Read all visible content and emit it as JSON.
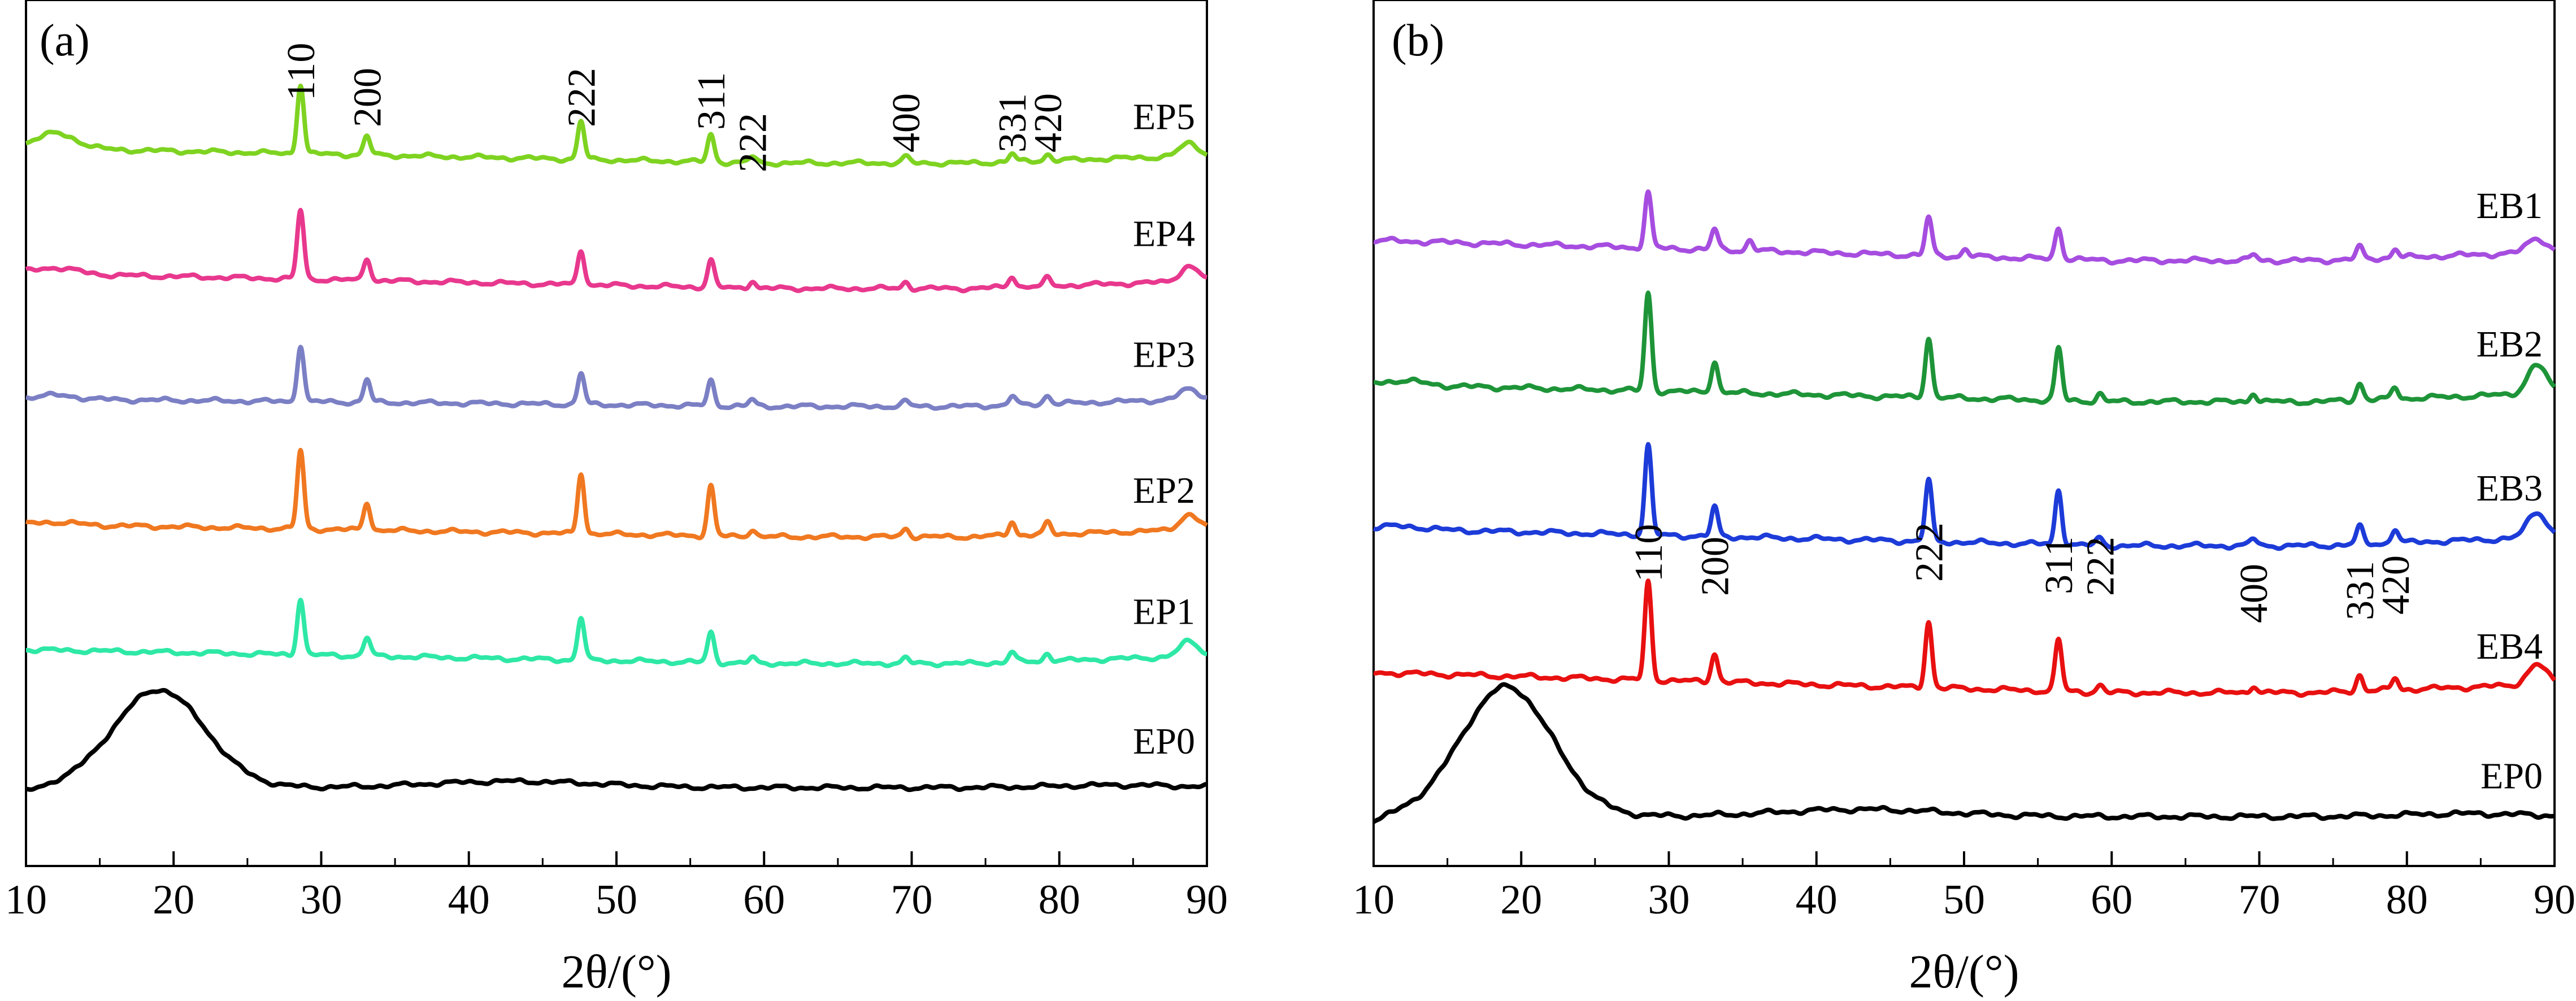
{
  "chart_data": [
    {
      "type": "line",
      "panel_label": "(a)",
      "xlabel": "2θ/(°)",
      "ylabel": "",
      "xlim": [
        10,
        90
      ],
      "x_ticks": [
        10,
        20,
        30,
        40,
        50,
        60,
        70,
        80,
        90
      ],
      "y_ticks": false,
      "grid": false,
      "peak_annotations": [
        {
          "label": "110",
          "x": 28.6
        },
        {
          "label": "200",
          "x": 33.1
        },
        {
          "label": "222",
          "x": 47.6
        },
        {
          "label": "311",
          "x": 56.4
        },
        {
          "label": "222",
          "x": 59.2
        },
        {
          "label": "400",
          "x": 69.6
        },
        {
          "label": "331",
          "x": 76.8
        },
        {
          "label": "420",
          "x": 79.2
        }
      ],
      "series": [
        {
          "name": "EP5",
          "color": "#7ed321",
          "baseline": 5.0,
          "baseline_drift": -0.12,
          "start_rise": 0.12,
          "peaks": [
            {
              "x": 28.6,
              "h": 0.55
            },
            {
              "x": 33.1,
              "h": 0.15
            },
            {
              "x": 47.6,
              "h": 0.3
            },
            {
              "x": 56.4,
              "h": 0.22
            },
            {
              "x": 59.2,
              "h": 0.05
            },
            {
              "x": 69.6,
              "h": 0.05
            },
            {
              "x": 76.8,
              "h": 0.06
            },
            {
              "x": 79.2,
              "h": 0.05
            },
            {
              "x": 88.8,
              "h": 0.1
            }
          ]
        },
        {
          "name": "EP4",
          "color": "#e8388e",
          "baseline": 4.0,
          "baseline_drift": -0.12,
          "start_rise": 0.05,
          "peaks": [
            {
              "x": 28.6,
              "h": 0.55
            },
            {
              "x": 33.1,
              "h": 0.18
            },
            {
              "x": 47.6,
              "h": 0.28
            },
            {
              "x": 56.4,
              "h": 0.22
            },
            {
              "x": 59.2,
              "h": 0.06
            },
            {
              "x": 69.6,
              "h": 0.05
            },
            {
              "x": 76.8,
              "h": 0.09
            },
            {
              "x": 79.2,
              "h": 0.06
            },
            {
              "x": 88.8,
              "h": 0.12
            }
          ]
        },
        {
          "name": "EP3",
          "color": "#7b7fc4",
          "baseline": 3.0,
          "baseline_drift": -0.06,
          "start_rise": 0.03,
          "peaks": [
            {
              "x": 28.6,
              "h": 0.45
            },
            {
              "x": 33.1,
              "h": 0.18
            },
            {
              "x": 47.6,
              "h": 0.25
            },
            {
              "x": 56.4,
              "h": 0.2
            },
            {
              "x": 59.2,
              "h": 0.05
            },
            {
              "x": 69.6,
              "h": 0.04
            },
            {
              "x": 76.8,
              "h": 0.07
            },
            {
              "x": 79.2,
              "h": 0.07
            },
            {
              "x": 88.8,
              "h": 0.08
            }
          ]
        },
        {
          "name": "EP2",
          "color": "#f07820",
          "baseline": 2.0,
          "baseline_drift": -0.1,
          "start_rise": 0.02,
          "peaks": [
            {
              "x": 28.6,
              "h": 0.62
            },
            {
              "x": 33.1,
              "h": 0.22
            },
            {
              "x": 47.6,
              "h": 0.48
            },
            {
              "x": 56.4,
              "h": 0.4
            },
            {
              "x": 59.2,
              "h": 0.06
            },
            {
              "x": 69.6,
              "h": 0.07
            },
            {
              "x": 76.8,
              "h": 0.11
            },
            {
              "x": 79.2,
              "h": 0.09
            },
            {
              "x": 88.8,
              "h": 0.12
            }
          ]
        },
        {
          "name": "EP1",
          "color": "#2ee8a6",
          "baseline": 1.0,
          "baseline_drift": -0.11,
          "start_rise": 0.0,
          "peaks": [
            {
              "x": 28.6,
              "h": 0.45
            },
            {
              "x": 33.1,
              "h": 0.15
            },
            {
              "x": 47.6,
              "h": 0.34
            },
            {
              "x": 56.4,
              "h": 0.24
            },
            {
              "x": 59.2,
              "h": 0.04
            },
            {
              "x": 69.6,
              "h": 0.04
            },
            {
              "x": 76.8,
              "h": 0.08
            },
            {
              "x": 79.2,
              "h": 0.06
            },
            {
              "x": 88.8,
              "h": 0.12
            }
          ]
        },
        {
          "name": "EP0",
          "color": "#000000",
          "amorphous": true,
          "baseline": -0.1,
          "hump_center": 19.0,
          "hump_height": 0.78,
          "hump_width": 4.4,
          "peaks": []
        }
      ]
    },
    {
      "type": "line",
      "panel_label": "(b)",
      "xlabel": "2θ/(°)",
      "ylabel": "",
      "xlim": [
        10,
        90
      ],
      "x_ticks": [
        10,
        20,
        30,
        40,
        50,
        60,
        70,
        80,
        90
      ],
      "y_ticks": false,
      "grid": false,
      "peak_annotations": [
        {
          "label": "110",
          "x": 28.6
        },
        {
          "label": "200",
          "x": 33.1
        },
        {
          "label": "222",
          "x": 47.6
        },
        {
          "label": "311",
          "x": 56.4
        },
        {
          "label": "222",
          "x": 59.2
        },
        {
          "label": "400",
          "x": 69.6
        },
        {
          "label": "331",
          "x": 76.8
        },
        {
          "label": "420",
          "x": 79.2
        }
      ],
      "series": [
        {
          "name": "EB1",
          "color": "#a64de0",
          "baseline": 3.9,
          "baseline_drift": -0.14,
          "start_rise": 0.0,
          "peaks": [
            {
              "x": 28.6,
              "h": 0.38
            },
            {
              "x": 33.1,
              "h": 0.14
            },
            {
              "x": 35.5,
              "h": 0.07
            },
            {
              "x": 47.6,
              "h": 0.26
            },
            {
              "x": 50.1,
              "h": 0.05
            },
            {
              "x": 56.4,
              "h": 0.22
            },
            {
              "x": 69.6,
              "h": 0.04
            },
            {
              "x": 76.8,
              "h": 0.08
            },
            {
              "x": 79.2,
              "h": 0.06
            },
            {
              "x": 88.8,
              "h": 0.1
            }
          ]
        },
        {
          "name": "EB2",
          "color": "#1e9438",
          "baseline": 2.9,
          "baseline_drift": -0.12,
          "start_rise": 0.03,
          "peaks": [
            {
              "x": 28.6,
              "h": 0.68
            },
            {
              "x": 33.1,
              "h": 0.22
            },
            {
              "x": 47.6,
              "h": 0.42
            },
            {
              "x": 56.4,
              "h": 0.36
            },
            {
              "x": 59.2,
              "h": 0.05
            },
            {
              "x": 69.6,
              "h": 0.06
            },
            {
              "x": 76.8,
              "h": 0.12
            },
            {
              "x": 79.2,
              "h": 0.08
            },
            {
              "x": 88.8,
              "h": 0.2
            }
          ]
        },
        {
          "name": "EB3",
          "color": "#1c3bd8",
          "baseline": 1.9,
          "baseline_drift": -0.12,
          "start_rise": 0.02,
          "peaks": [
            {
              "x": 28.6,
              "h": 0.62
            },
            {
              "x": 33.1,
              "h": 0.2
            },
            {
              "x": 47.6,
              "h": 0.42
            },
            {
              "x": 56.4,
              "h": 0.38
            },
            {
              "x": 59.2,
              "h": 0.05
            },
            {
              "x": 69.6,
              "h": 0.05
            },
            {
              "x": 76.8,
              "h": 0.12
            },
            {
              "x": 79.2,
              "h": 0.1
            },
            {
              "x": 88.8,
              "h": 0.18
            }
          ]
        },
        {
          "name": "EB4",
          "color": "#e81010",
          "baseline": 0.9,
          "baseline_drift": -0.14,
          "start_rise": 0.0,
          "peaks": [
            {
              "x": 28.6,
              "h": 0.68
            },
            {
              "x": 33.1,
              "h": 0.2
            },
            {
              "x": 47.6,
              "h": 0.46
            },
            {
              "x": 56.4,
              "h": 0.36
            },
            {
              "x": 59.2,
              "h": 0.05
            },
            {
              "x": 69.6,
              "h": 0.05
            },
            {
              "x": 76.8,
              "h": 0.11
            },
            {
              "x": 79.2,
              "h": 0.08
            },
            {
              "x": 88.8,
              "h": 0.14
            }
          ]
        },
        {
          "name": "EP0",
          "color": "#000000",
          "amorphous": true,
          "baseline": -0.1,
          "hump_center": 19.0,
          "hump_height": 0.9,
          "hump_width": 4.4,
          "peaks": []
        }
      ]
    }
  ]
}
